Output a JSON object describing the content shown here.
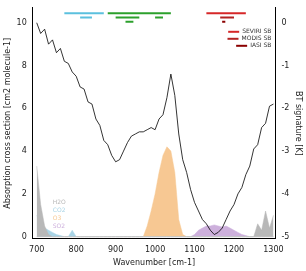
{
  "chart_data": {
    "type": "line",
    "x_label": "Wavenumber [cm-1]",
    "y_label": "Absorption cross section [cm2 molecule-1]",
    "y2_label": "BT signature [K]",
    "x": [
      700,
      710,
      720,
      730,
      740,
      750,
      760,
      770,
      780,
      790,
      800,
      810,
      820,
      830,
      840,
      850,
      860,
      870,
      880,
      890,
      900,
      910,
      920,
      930,
      940,
      950,
      960,
      970,
      980,
      990,
      1000,
      1010,
      1020,
      1030,
      1040,
      1050,
      1060,
      1070,
      1080,
      1090,
      1100,
      1110,
      1120,
      1130,
      1140,
      1150,
      1160,
      1170,
      1180,
      1190,
      1200,
      1210,
      1220,
      1230,
      1240,
      1250,
      1260,
      1270,
      1280,
      1290,
      1300
    ],
    "xlim": [
      690,
      1305
    ],
    "xticks": [
      700,
      800,
      900,
      1000,
      1100,
      1200,
      1300
    ],
    "ylim": [
      -0.1,
      10.7
    ],
    "yticks": [
      0,
      2,
      4,
      6,
      8,
      10
    ],
    "y2lim": [
      -5.05,
      0.35
    ],
    "y2ticks": [
      -5,
      -4,
      -3,
      -2,
      -1,
      0
    ],
    "grid": false,
    "legend": "upper right",
    "series": [
      {
        "name": "H2O",
        "type": "area",
        "color": "#b8b8b8",
        "values": [
          3.3,
          1.5,
          0.5,
          0.1,
          0,
          0,
          0,
          0,
          0,
          0,
          0,
          0,
          0,
          0,
          0,
          0,
          0,
          0,
          0,
          0,
          0,
          0,
          0,
          0,
          0,
          0,
          0,
          0,
          0,
          0,
          0,
          0,
          0,
          0,
          0,
          0,
          0,
          0,
          0,
          0,
          0,
          0,
          0,
          0,
          0,
          0,
          0,
          0,
          0,
          0,
          0,
          0,
          0,
          0,
          0,
          0,
          0.6,
          0.3,
          1.2,
          0.4,
          1.0
        ]
      },
      {
        "name": "CO2",
        "type": "area",
        "color": "#a9d4e6",
        "values": [
          1.0,
          0.6,
          0.4,
          0.3,
          0.2,
          0.1,
          0.05,
          0,
          0,
          0.3,
          0,
          0,
          0,
          0,
          0,
          0,
          0,
          0,
          0,
          0,
          0,
          0,
          0,
          0,
          0,
          0,
          0,
          0,
          0,
          0,
          0,
          0,
          0,
          0,
          0,
          0,
          0,
          0,
          0,
          0,
          0,
          0,
          0,
          0,
          0,
          0,
          0,
          0,
          0,
          0,
          0,
          0,
          0,
          0,
          0,
          0,
          0,
          0,
          0,
          0,
          0
        ]
      },
      {
        "name": "O3",
        "type": "area",
        "color": "#f7c893",
        "values": [
          0,
          0,
          0,
          0,
          0,
          0,
          0,
          0,
          0,
          0,
          0,
          0,
          0,
          0,
          0,
          0,
          0,
          0,
          0,
          0,
          0,
          0,
          0,
          0,
          0,
          0,
          0,
          0,
          0.5,
          1.2,
          2.0,
          3.0,
          3.8,
          4.2,
          4.0,
          3.0,
          0.8,
          0.1,
          0,
          0,
          0,
          0,
          0,
          0,
          0,
          0,
          0,
          0,
          0,
          0,
          0,
          0,
          0,
          0,
          0,
          0,
          0,
          0,
          0,
          0,
          0
        ]
      },
      {
        "name": "SO2",
        "type": "area",
        "color": "#cdb0dc",
        "values": [
          0,
          0,
          0,
          0,
          0,
          0,
          0,
          0,
          0,
          0,
          0,
          0,
          0,
          0,
          0,
          0,
          0,
          0,
          0,
          0,
          0,
          0,
          0,
          0,
          0,
          0,
          0,
          0,
          0,
          0,
          0,
          0,
          0,
          0,
          0,
          0,
          0,
          0,
          0,
          0,
          0.1,
          0.3,
          0.4,
          0.5,
          0.5,
          0.55,
          0.5,
          0.45,
          0.5,
          0.4,
          0.3,
          0.2,
          0.1,
          0.05,
          0,
          0,
          0,
          0,
          0,
          0,
          0
        ]
      },
      {
        "type": "line",
        "axis": "y2",
        "color": "#000000",
        "values": [
          0,
          -0.25,
          -0.15,
          -0.5,
          -0.4,
          -0.7,
          -0.6,
          -0.9,
          -0.95,
          -1.15,
          -1.25,
          -1.5,
          -1.55,
          -1.85,
          -1.9,
          -2.25,
          -2.4,
          -2.75,
          -2.85,
          -3.1,
          -3.25,
          -3.2,
          -3.0,
          -2.8,
          -2.65,
          -2.6,
          -2.55,
          -2.55,
          -2.5,
          -2.45,
          -2.5,
          -2.25,
          -2.15,
          -1.75,
          -1.2,
          -1.7,
          -2.6,
          -3.2,
          -3.5,
          -3.9,
          -4.2,
          -4.4,
          -4.6,
          -4.7,
          -4.85,
          -4.95,
          -4.9,
          -4.8,
          -4.6,
          -4.4,
          -4.25,
          -4.0,
          -3.85,
          -3.55,
          -3.35,
          -2.95,
          -2.85,
          -2.45,
          -2.35,
          -1.95,
          -1.9
        ]
      },
      {
        "type": "line",
        "color": "#5bc0de",
        "x": [
          770,
          870
        ],
        "values": [
          10.45,
          10.45
        ]
      },
      {
        "type": "line",
        "color": "#2ca02c",
        "x": [
          880,
          1040
        ],
        "values": [
          10.45,
          10.45
        ]
      },
      {
        "name": "SEVIRI SB",
        "type": "line",
        "color": "#d62728",
        "x": [
          1130,
          1230
        ],
        "values": [
          10.45,
          10.45
        ]
      },
      {
        "type": "line",
        "color": "#5bc0de",
        "x": [
          810,
          840
        ],
        "values": [
          10.25,
          10.25
        ]
      },
      {
        "type": "line",
        "color": "#2ca02c",
        "x": [
          900,
          960
        ],
        "values": [
          10.25,
          10.25
        ]
      },
      {
        "type": "line",
        "color": "#2ca02c",
        "x": [
          1000,
          1020
        ],
        "values": [
          10.25,
          10.25
        ]
      },
      {
        "name": "MODIS SB",
        "type": "line",
        "color": "#b22222",
        "x": [
          1165,
          1200
        ],
        "values": [
          10.25,
          10.25
        ]
      },
      {
        "type": "line",
        "color": "#2ca02c",
        "x": [
          925,
          945
        ],
        "values": [
          10.05,
          10.05
        ]
      },
      {
        "name": "IASI SB",
        "type": "line",
        "color": "#8b0000",
        "x": [
          1170,
          1178
        ],
        "values": [
          10.05,
          10.05
        ]
      }
    ]
  }
}
